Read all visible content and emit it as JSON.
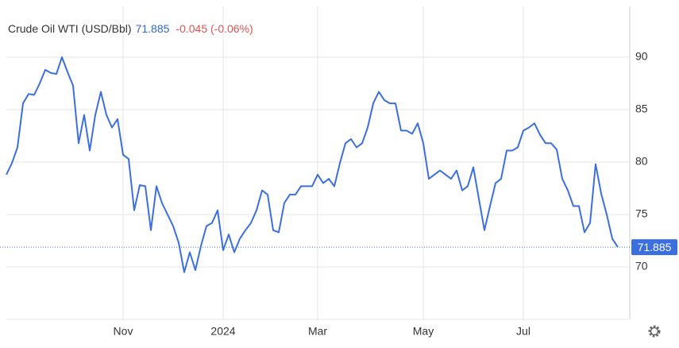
{
  "chart_data": {
    "type": "line",
    "title": "Crude Oil WTI (USD/Bbl)",
    "last_price": 71.885,
    "change": "-0.045 (-0.06%)",
    "categories": [
      null,
      null,
      null,
      null,
      null,
      null,
      null,
      null,
      null,
      null,
      null,
      null,
      null,
      null,
      null,
      null,
      null,
      null,
      null,
      null,
      null,
      "Nov",
      null,
      null,
      null,
      null,
      null,
      null,
      null,
      null,
      null,
      null,
      null,
      null,
      null,
      null,
      null,
      null,
      null,
      "2024",
      null,
      null,
      null,
      null,
      null,
      null,
      null,
      null,
      null,
      null,
      null,
      null,
      null,
      null,
      null,
      null,
      "Mar",
      null,
      null,
      null,
      null,
      null,
      null,
      null,
      null,
      null,
      null,
      null,
      null,
      null,
      null,
      null,
      null,
      null,
      null,
      "May",
      null,
      null,
      null,
      null,
      null,
      null,
      null,
      null,
      null,
      null,
      null,
      null,
      null,
      null,
      null,
      null,
      null,
      "Jul",
      null,
      null,
      null,
      null,
      null,
      null,
      null,
      null,
      null,
      null,
      null,
      null,
      null,
      null,
      null,
      null,
      null
    ],
    "series": [
      {
        "name": "Crude Oil WTI",
        "color": "#3b6fe0",
        "values": [
          78.8,
          79.9,
          81.4,
          85.6,
          86.5,
          86.4,
          87.5,
          88.8,
          88.5,
          88.4,
          90.0,
          88.6,
          87.3,
          81.8,
          84.5,
          81.1,
          84.5,
          86.7,
          84.5,
          83.3,
          84.1,
          80.7,
          80.3,
          75.4,
          77.8,
          77.7,
          73.5,
          77.7,
          76.1,
          75.0,
          73.9,
          72.3,
          69.5,
          71.4,
          69.7,
          72.0,
          73.9,
          74.2,
          75.4,
          71.6,
          73.1,
          71.4,
          72.7,
          73.5,
          74.2,
          75.4,
          77.3,
          76.9,
          73.5,
          73.3,
          76.1,
          76.9,
          76.9,
          77.7,
          77.7,
          77.7,
          78.8,
          78.0,
          78.4,
          77.7,
          79.9,
          81.8,
          82.2,
          81.4,
          81.8,
          83.3,
          85.6,
          86.7,
          85.9,
          85.6,
          85.6,
          83.0,
          83.0,
          82.7,
          83.7,
          81.8,
          78.4,
          78.8,
          79.2,
          78.8,
          78.4,
          79.2,
          77.3,
          77.7,
          79.5,
          76.5,
          73.5,
          75.8,
          78.0,
          78.4,
          81.1,
          81.1,
          81.4,
          83.0,
          83.3,
          83.7,
          82.6,
          81.8,
          81.8,
          81.2,
          78.4,
          77.3,
          75.8,
          75.8,
          73.3,
          74.2,
          79.8,
          77.0,
          75.0,
          72.7,
          71.885
        ]
      }
    ],
    "ylim": [
      65,
      94.85
    ],
    "yticks": [
      70,
      75,
      80,
      85,
      90
    ],
    "grid": true
  }
}
